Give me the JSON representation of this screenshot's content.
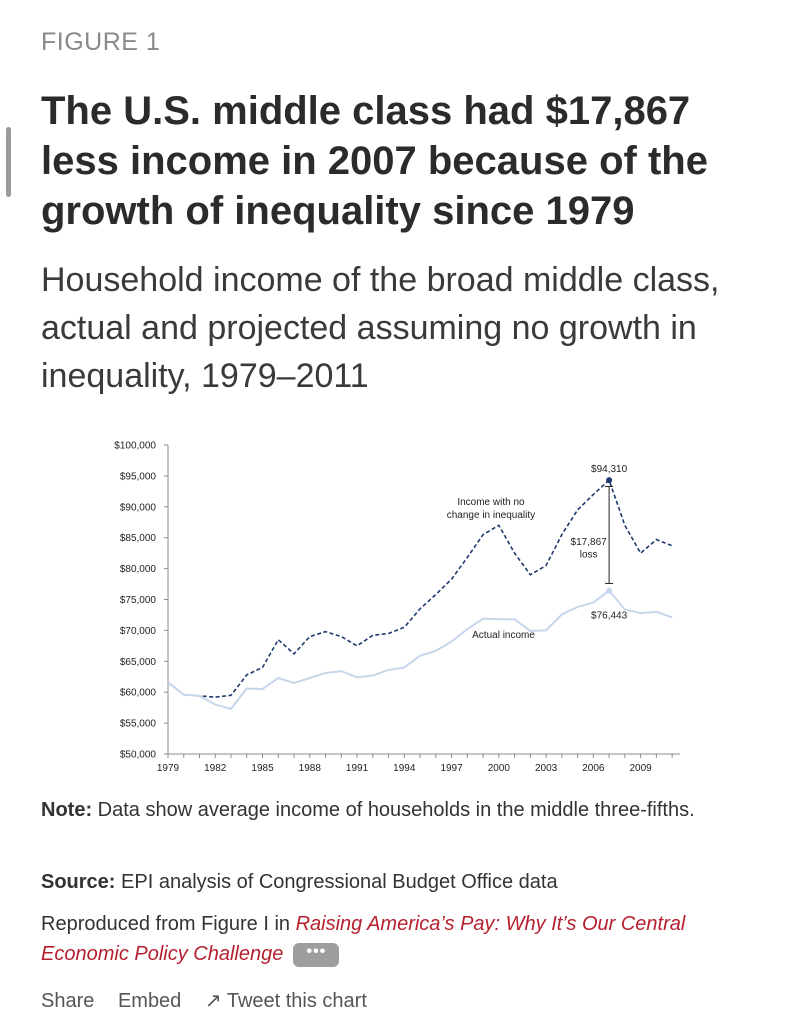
{
  "figure": {
    "label": "FIGURE 1",
    "title": "The U.S. middle class had $17,867 less income in 2007 because of the growth of inequality since 1979",
    "subtitle": "Household income of the broad middle class, actual and projected assuming no growth in inequality, 1979–2011"
  },
  "chart_data": {
    "type": "line",
    "title": "",
    "xlabel": "",
    "ylabel": "",
    "x": [
      1979,
      1980,
      1981,
      1982,
      1983,
      1984,
      1985,
      1986,
      1987,
      1988,
      1989,
      1990,
      1991,
      1992,
      1993,
      1994,
      1995,
      1996,
      1997,
      1998,
      1999,
      2000,
      2001,
      2002,
      2003,
      2004,
      2005,
      2006,
      2007,
      2008,
      2009,
      2010,
      2011
    ],
    "xticks": [
      "1979",
      "1982",
      "1985",
      "1988",
      "1991",
      "1994",
      "1997",
      "2000",
      "2003",
      "2006",
      "2009"
    ],
    "xlim": [
      1979,
      2011.5
    ],
    "ylim": [
      50000,
      100000
    ],
    "yticks": [
      "$50,000",
      "$55,000",
      "$60,000",
      "$65,000",
      "$70,000",
      "$75,000",
      "$80,000",
      "$85,000",
      "$90,000",
      "$95,000",
      "$100,000"
    ],
    "grid": false,
    "series": [
      {
        "name": "Income with no change in inequality",
        "style": "dashed",
        "color": "#1f3a6e",
        "values": [
          61600,
          59600,
          59400,
          59200,
          59500,
          62800,
          64000,
          68500,
          66200,
          69000,
          69800,
          69000,
          67500,
          69200,
          69500,
          70500,
          73500,
          75800,
          78300,
          81800,
          85500,
          87000,
          82500,
          79000,
          80500,
          85500,
          89500,
          92000,
          94310,
          87000,
          82500,
          84700,
          83700
        ]
      },
      {
        "name": "Actual income",
        "style": "solid",
        "color": "#c7d6ea",
        "values": [
          61600,
          59600,
          59400,
          58000,
          57300,
          60600,
          60500,
          62300,
          61500,
          62300,
          63100,
          63400,
          62400,
          62700,
          63600,
          64000,
          65900,
          66700,
          68200,
          70200,
          71900,
          71800,
          71800,
          69900,
          70000,
          72600,
          73800,
          74500,
          76443,
          73400,
          72800,
          73000,
          72100
        ]
      }
    ],
    "annotations": {
      "peak_label": "$94,310",
      "actual_label": "$76,443",
      "gap_label_line1": "$17,867",
      "gap_label_line2": "loss",
      "series1_label_line1": "Income with no",
      "series1_label_line2": "change in inequality",
      "series2_label": "Actual income"
    }
  },
  "footer": {
    "note_label": "Note:",
    "note_text": " Data show average income of households in the middle three-fifths.",
    "source_label": "Source:",
    "source_text": " EPI analysis of Congressional Budget Office data",
    "repro_text": "Reproduced from Figure I in ",
    "repro_link": "Raising America’s Pay: Why It’s Our Central Economic Policy Challenge",
    "more_label": "•••"
  },
  "share": {
    "items": [
      "Share",
      "Embed",
      "↗ Tweet this chart"
    ]
  }
}
